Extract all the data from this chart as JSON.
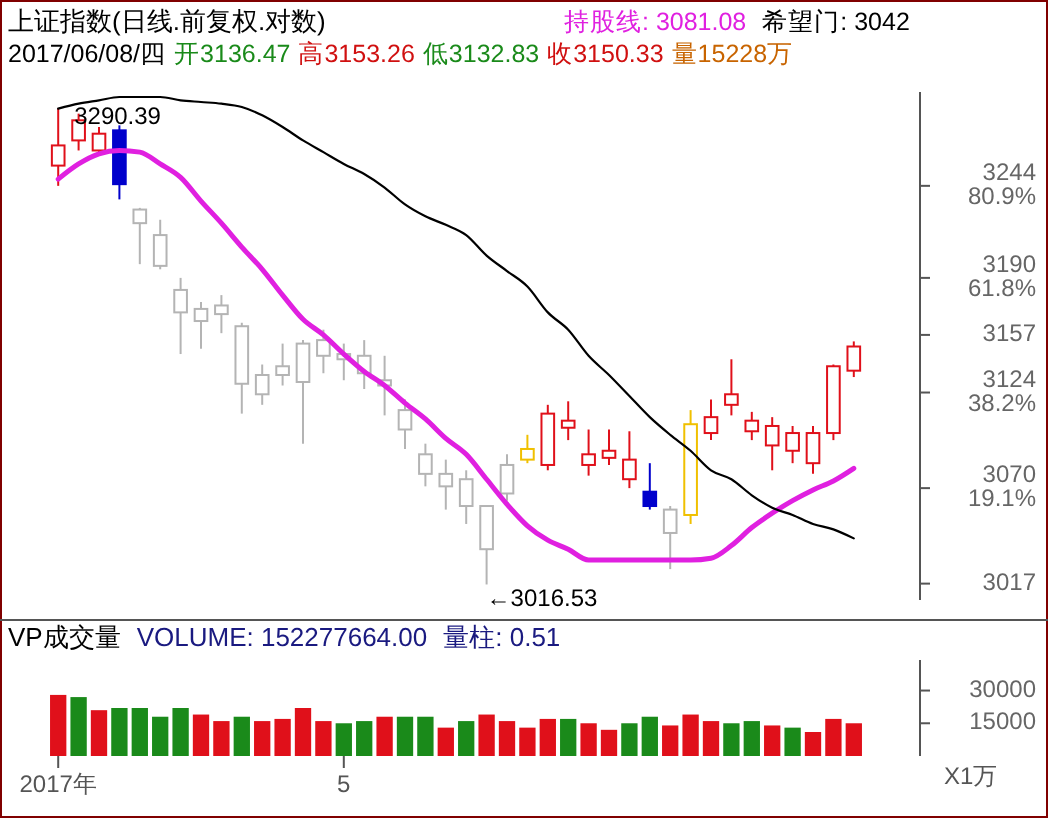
{
  "chart_data": [
    {
      "type": "candlestick",
      "title": "上证指数(日线.前复权.对数)",
      "subtitle": "2017/06/08/四 开3136.47 高3153.26 低3132.83 收3150.33 量15228万",
      "log": true,
      "tick_labels": "y",
      "categories": [
        null,
        null,
        null,
        null,
        null,
        null,
        null,
        null,
        null,
        null,
        null,
        null,
        null,
        null,
        null,
        null,
        null,
        null,
        null,
        null,
        null,
        null,
        null,
        null,
        null,
        null,
        null,
        null,
        null,
        null,
        null,
        null,
        null,
        null,
        null,
        null,
        null,
        null,
        null,
        null
      ],
      "ohlc": [
        [
          3256,
          3290.39,
          3244,
          3268
        ],
        [
          3271,
          3287,
          3265,
          3283
        ],
        [
          3265,
          3279,
          3262,
          3275
        ],
        [
          3277,
          3280,
          3236,
          3245
        ],
        [
          3222,
          3231,
          3198,
          3230
        ],
        [
          3197,
          3224,
          3195,
          3215
        ],
        [
          3170,
          3190,
          3146,
          3183
        ],
        [
          3165,
          3176,
          3149,
          3172
        ],
        [
          3169,
          3180,
          3158,
          3174
        ],
        [
          3129,
          3164,
          3112,
          3162
        ],
        [
          3123,
          3140,
          3117,
          3134
        ],
        [
          3134,
          3152,
          3128,
          3139
        ],
        [
          3130,
          3154,
          3095,
          3152
        ],
        [
          3145,
          3160,
          3135,
          3154
        ],
        [
          3143,
          3152,
          3131,
          3146
        ],
        [
          3135,
          3154,
          3126,
          3145
        ],
        [
          3128,
          3145,
          3111,
          3131
        ],
        [
          3103,
          3120,
          3092,
          3114
        ],
        [
          3078,
          3095,
          3071,
          3089
        ],
        [
          3071,
          3086,
          3058,
          3078
        ],
        [
          3060,
          3080,
          3050,
          3075
        ],
        [
          3036,
          3060,
          3016.53,
          3060
        ],
        [
          3067,
          3089,
          3063,
          3083
        ],
        [
          3086,
          3100,
          3084,
          3092
        ],
        [
          3083,
          3117,
          3080,
          3112
        ],
        [
          3104,
          3119,
          3097,
          3108
        ],
        [
          3083,
          3103,
          3077,
          3089
        ],
        [
          3087,
          3103,
          3083,
          3091
        ],
        [
          3075,
          3102,
          3070,
          3086
        ],
        [
          3068,
          3084,
          3058,
          3060
        ],
        [
          3045,
          3060,
          3025,
          3058
        ],
        [
          3055,
          3114,
          3050,
          3106
        ],
        [
          3101,
          3120,
          3097,
          3110
        ],
        [
          3117,
          3143,
          3111,
          3123
        ],
        [
          3102,
          3113,
          3097,
          3108
        ],
        [
          3094,
          3110,
          3080,
          3105
        ],
        [
          3091,
          3105,
          3084,
          3101
        ],
        [
          3084,
          3105,
          3078,
          3101
        ],
        [
          3101,
          3140,
          3097,
          3139
        ],
        [
          3136.47,
          3153.26,
          3132.83,
          3150.33
        ]
      ],
      "colors": [
        "#e0101a",
        "#e0101a",
        "#e0101a",
        "#0000cc",
        "#b4b4b4",
        "#b4b4b4",
        "#b4b4b4",
        "#b4b4b4",
        "#b4b4b4",
        "#b4b4b4",
        "#b4b4b4",
        "#b4b4b4",
        "#b4b4b4",
        "#b4b4b4",
        "#b4b4b4",
        "#b4b4b4",
        "#b4b4b4",
        "#b4b4b4",
        "#b4b4b4",
        "#b4b4b4",
        "#b4b4b4",
        "#b4b4b4",
        "#b4b4b4",
        "#f0c000",
        "#e0101a",
        "#e0101a",
        "#e0101a",
        "#e0101a",
        "#e0101a",
        "#0000cc",
        "#b4b4b4",
        "#f0c000",
        "#e0101a",
        "#e0101a",
        "#e0101a",
        "#e0101a",
        "#e0101a",
        "#e0101a",
        "#e0101a",
        "#e0101a"
      ],
      "series": [
        {
          "name": "持股线: 3081.08",
          "type": "line",
          "color": "#e020e0",
          "values": [
            3248,
            3257,
            3263,
            3265,
            3264,
            3257,
            3249,
            3235,
            3222,
            3208,
            3195,
            3180,
            3166,
            3157,
            3146,
            3136,
            3128,
            3118,
            3109,
            3098,
            3089,
            3075,
            3061,
            3049,
            3041,
            3036,
            3030,
            3030,
            3030,
            3030,
            3030,
            3030,
            3031,
            3038,
            3048,
            3056,
            3063,
            3069,
            3074,
            3081.08
          ]
        },
        {
          "name": "希望门: 3042",
          "type": "line",
          "color": "#000000",
          "values": [
            3290,
            3293,
            3295,
            3297,
            3297,
            3297,
            3295,
            3294,
            3293,
            3291,
            3286,
            3279,
            3271,
            3264,
            3257,
            3251,
            3243,
            3233,
            3226,
            3221,
            3215,
            3203,
            3194,
            3185,
            3170,
            3160,
            3145,
            3134,
            3122,
            3110,
            3100,
            3091,
            3080,
            3075,
            3066,
            3059,
            3055,
            3050,
            3047,
            3042
          ]
        }
      ],
      "ylim": [
        3008,
        3300
      ],
      "yticks": [
        {
          "value": 3017,
          "label": "3017"
        },
        {
          "value": 3070,
          "label": "3070\n19.1%"
        },
        {
          "value": 3124,
          "label": "3124\n38.2%"
        },
        3157,
        {
          "value": 3190,
          "label": "3190\n61.8%"
        },
        {
          "value": 3244,
          "label": "3244\n80.9%"
        }
      ],
      "annotations": [
        {
          "text": "3290.39",
          "y": 3290.39
        },
        "←3016.53"
      ]
    },
    {
      "type": "bar",
      "title": "VP成交量",
      "annotations": [
        "VOLUME: 152277664.00",
        "量柱: 0.51"
      ],
      "ylabel": "X1万",
      "categories": [
        "2017年",
        null,
        null,
        null,
        null,
        null,
        null,
        null,
        null,
        null,
        null,
        null,
        null,
        null,
        "5",
        null,
        null,
        null,
        null,
        null,
        null,
        null,
        null,
        null,
        null,
        null,
        null,
        null,
        null,
        null,
        null,
        null,
        null,
        null,
        null,
        null,
        null,
        null,
        null,
        null
      ],
      "values": [
        28000,
        27000,
        21000,
        22000,
        22000,
        18000,
        22000,
        19000,
        16000,
        18000,
        16000,
        17000,
        22000,
        16000,
        15000,
        16000,
        18000,
        18000,
        18000,
        13000,
        16000,
        19000,
        16000,
        13000,
        17000,
        17000,
        15000,
        12000,
        15000,
        18000,
        14000,
        19000,
        16000,
        15000,
        16000,
        14000,
        13000,
        11000,
        17000,
        15000
      ],
      "colors": [
        "#e0101a",
        "#1a8a1a",
        "#e0101a",
        "#1a8a1a",
        "#1a8a1a",
        "#1a8a1a",
        "#1a8a1a",
        "#e0101a",
        "#e0101a",
        "#1a8a1a",
        "#e0101a",
        "#e0101a",
        "#e0101a",
        "#e0101a",
        "#1a8a1a",
        "#1a8a1a",
        "#e0101a",
        "#1a8a1a",
        "#1a8a1a",
        "#e0101a",
        "#1a8a1a",
        "#e0101a",
        "#e0101a",
        "#e0101a",
        "#e0101a",
        "#1a8a1a",
        "#e0101a",
        "#e0101a",
        "#1a8a1a",
        "#1a8a1a",
        "#e0101a",
        "#e0101a",
        "#e0101a",
        "#1a8a1a",
        "#1a8a1a",
        "#e0101a",
        "#1a8a1a",
        "#e0101a",
        "#e0101a",
        "#e0101a"
      ],
      "ylim": [
        0,
        44000
      ],
      "yticks": [
        15000,
        30000
      ]
    }
  ]
}
